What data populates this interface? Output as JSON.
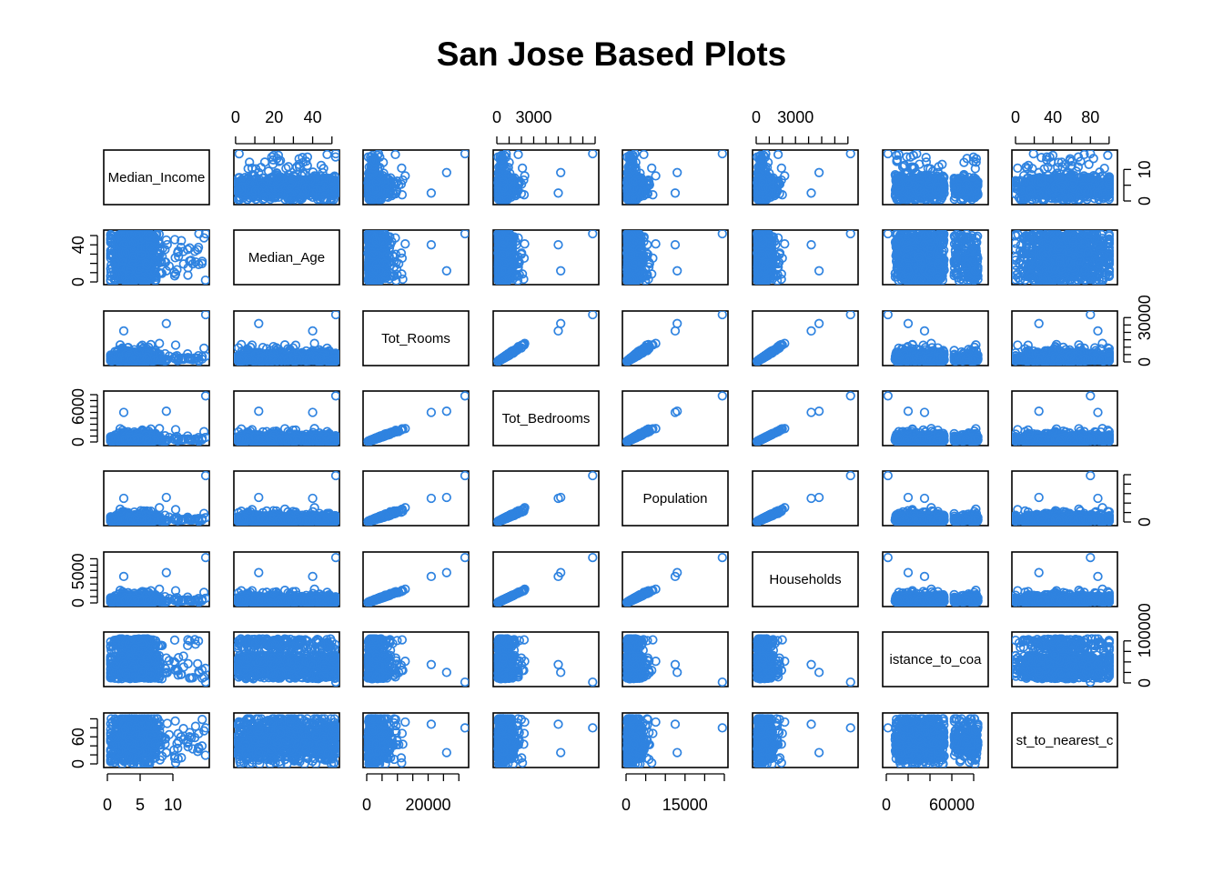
{
  "title": "San Jose Based Plots",
  "colors": {
    "points": "#2f83e0",
    "axes": "#000000",
    "background": "#ffffff"
  },
  "chart_data": {
    "type": "scatter",
    "kind": "scatterplot-matrix",
    "title": "San Jose Based Plots",
    "marker": "open-circle",
    "variables": [
      {
        "name": "Median_Income",
        "label": "Median_Income",
        "range": [
          0,
          15
        ],
        "ticks": [
          0,
          5,
          10
        ],
        "tick_labels": [
          "0",
          "5",
          "10"
        ]
      },
      {
        "name": "Median_Age",
        "label": "Median_Age",
        "range": [
          1,
          52
        ],
        "ticks": [
          0,
          10,
          20,
          30,
          40,
          50
        ],
        "tick_labels": [
          "0",
          "20",
          "40"
        ]
      },
      {
        "name": "Tot_Rooms",
        "label": "Tot_Rooms",
        "range": [
          0,
          32000
        ],
        "ticks": [
          0,
          5000,
          10000,
          15000,
          20000,
          25000,
          30000
        ],
        "tick_labels": [
          "0",
          "20000"
        ]
      },
      {
        "name": "Tot_Bedrooms",
        "label": "Tot_Bedrooms",
        "range": [
          0,
          8000
        ],
        "ticks": [
          0,
          1000,
          2000,
          3000,
          4000,
          5000,
          6000,
          7000,
          8000
        ],
        "tick_labels": [
          "0",
          "3000"
        ]
      },
      {
        "name": "Population",
        "label": "Population",
        "range": [
          0,
          25000
        ],
        "ticks": [
          0,
          5000,
          10000,
          15000,
          20000,
          25000
        ],
        "tick_labels": [
          "0",
          "15000"
        ]
      },
      {
        "name": "Households",
        "label": "Households",
        "range": [
          0,
          7500
        ],
        "ticks": [
          0,
          1000,
          2000,
          3000,
          4000,
          5000,
          6000,
          7000
        ],
        "tick_labels": [
          "0",
          "3000"
        ]
      },
      {
        "name": "Distance_to_coast",
        "label": "istance_to_coa",
        "range": [
          0,
          90000
        ],
        "ticks": [
          0,
          20000,
          40000,
          60000,
          80000
        ],
        "tick_labels": [
          "0",
          "60000"
        ]
      },
      {
        "name": "Dist_to_nearest_city",
        "label": "st_to_nearest_c",
        "range": [
          0,
          105
        ],
        "ticks": [
          0,
          20,
          40,
          60,
          80,
          100
        ],
        "tick_labels": [
          "0",
          "40",
          "80"
        ]
      }
    ],
    "axis_labels": {
      "bottom": [
        {
          "col": 0,
          "labels": [
            "0",
            "5",
            "10"
          ]
        },
        {
          "col": 2,
          "labels": [
            "0",
            "20000"
          ]
        },
        {
          "col": 4,
          "labels": [
            "0",
            "15000"
          ]
        },
        {
          "col": 6,
          "labels": [
            "0",
            "60000"
          ]
        }
      ],
      "top": [
        {
          "col": 1,
          "labels": [
            "0",
            "20",
            "40"
          ]
        },
        {
          "col": 3,
          "labels": [
            "0",
            "3000"
          ]
        },
        {
          "col": 5,
          "labels": [
            "0",
            "3000"
          ]
        },
        {
          "col": 7,
          "labels": [
            "0",
            "40",
            "80"
          ]
        }
      ],
      "left": [
        {
          "row": 1,
          "labels": [
            "0",
            "40"
          ]
        },
        {
          "row": 3,
          "labels": [
            "0",
            "6000"
          ]
        },
        {
          "row": 5,
          "labels": [
            "0",
            "5000"
          ]
        },
        {
          "row": 7,
          "labels": [
            "0",
            "60"
          ]
        }
      ],
      "right": [
        {
          "row": 0,
          "labels": [
            "0",
            "10"
          ]
        },
        {
          "row": 2,
          "labels": [
            "0",
            "30000"
          ]
        },
        {
          "row": 4,
          "labels": [
            "0"
          ]
        },
        {
          "row": 6,
          "labels": [
            "0",
            "100000"
          ]
        }
      ]
    },
    "grid": false,
    "legend": "none"
  }
}
